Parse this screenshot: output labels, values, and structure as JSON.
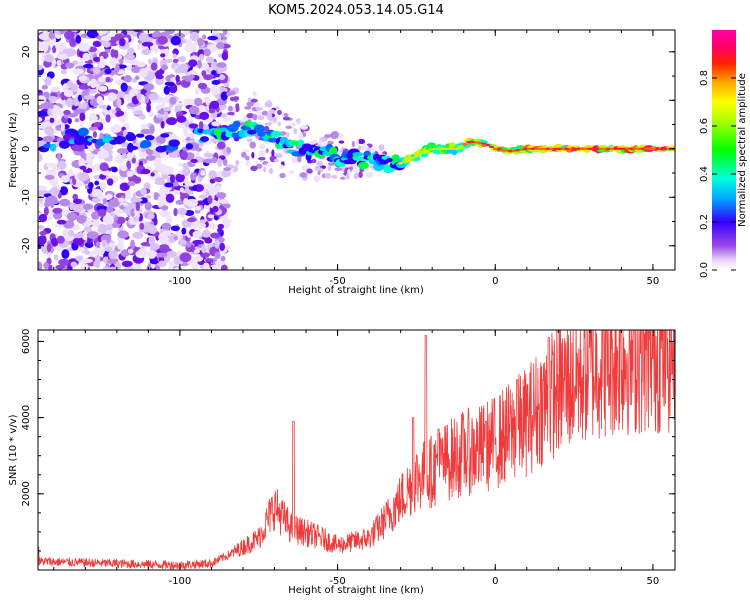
{
  "title": "KOM5.2024.053.14.05.G14",
  "colors": {
    "snr_line": "#ef3b3b",
    "frame": "#000000"
  },
  "chart_data": [
    {
      "type": "heatmap",
      "xlabel": "Height of straight line (km)",
      "ylabel": "Frequency (Hz)",
      "xlim": [
        -145,
        57
      ],
      "ylim": [
        -25,
        24.5
      ],
      "xticks": [
        -100,
        -50,
        0,
        50
      ],
      "yticks": [
        -20,
        -10,
        0,
        10,
        20
      ],
      "colorbar": {
        "label": "Normalized spectral amplitude",
        "range": [
          0,
          1
        ],
        "ticks": [
          "0.0",
          "0.2",
          "0.4",
          "0.6",
          "0.8"
        ],
        "colormap": "rainbow (white→violet→blue→cyan→green→yellow→orange→red→magenta)"
      },
      "ridge": {
        "description": "dominant spectral peak frequency vs height",
        "points": [
          [
            -145,
            1
          ],
          [
            -130,
            2
          ],
          [
            -100,
            1.5
          ],
          [
            -95,
            2
          ],
          [
            -85,
            3.5
          ],
          [
            -78,
            4
          ],
          [
            -72,
            3
          ],
          [
            -65,
            0
          ],
          [
            -55,
            -1
          ],
          [
            -45,
            -2
          ],
          [
            -38,
            -2.5
          ],
          [
            -30,
            -3
          ],
          [
            -25,
            -1.5
          ],
          [
            -20,
            0
          ],
          [
            -12,
            0
          ],
          [
            -8,
            1.5
          ],
          [
            -3,
            1
          ],
          [
            0,
            0
          ],
          [
            5,
            -0.5
          ],
          [
            10,
            0
          ],
          [
            20,
            0
          ],
          [
            40,
            0
          ],
          [
            57,
            0
          ]
        ]
      }
    },
    {
      "type": "line",
      "xlabel": "Height of straight line (km)",
      "ylabel": "SNR (10 * v/v)",
      "xlim": [
        -145,
        57
      ],
      "ylim": [
        0,
        6300
      ],
      "xticks": [
        -100,
        -50,
        0,
        50
      ],
      "yticks": [
        2000,
        4000,
        6000
      ],
      "series": [
        {
          "envelope": [
            [
              -145,
              250
            ],
            [
              -100,
              150
            ],
            [
              -90,
              200
            ],
            [
              -85,
              400
            ],
            [
              -75,
              900
            ],
            [
              -70,
              1800
            ],
            [
              -65,
              1200
            ],
            [
              -55,
              900
            ],
            [
              -50,
              700
            ],
            [
              -40,
              900
            ],
            [
              -35,
              1400
            ],
            [
              -30,
              2000
            ],
            [
              -25,
              2600
            ],
            [
              -20,
              2800
            ],
            [
              -15,
              3100
            ],
            [
              -10,
              3300
            ],
            [
              -5,
              3400
            ],
            [
              0,
              3600
            ],
            [
              5,
              3900
            ],
            [
              10,
              4200
            ],
            [
              15,
              4700
            ],
            [
              20,
              5100
            ],
            [
              25,
              5400
            ],
            [
              30,
              5700
            ],
            [
              35,
              5900
            ],
            [
              40,
              6000
            ],
            [
              45,
              6050
            ],
            [
              50,
              6100
            ],
            [
              57,
              6150
            ]
          ],
          "spikes": [
            [
              -145,
              600
            ],
            [
              -64,
              3900
            ],
            [
              -22,
              6150
            ],
            [
              -26,
              4000
            ],
            [
              -18,
              3700
            ],
            [
              -3,
              3900
            ],
            [
              17,
              6100
            ],
            [
              7,
              5000
            ]
          ]
        }
      ]
    }
  ]
}
